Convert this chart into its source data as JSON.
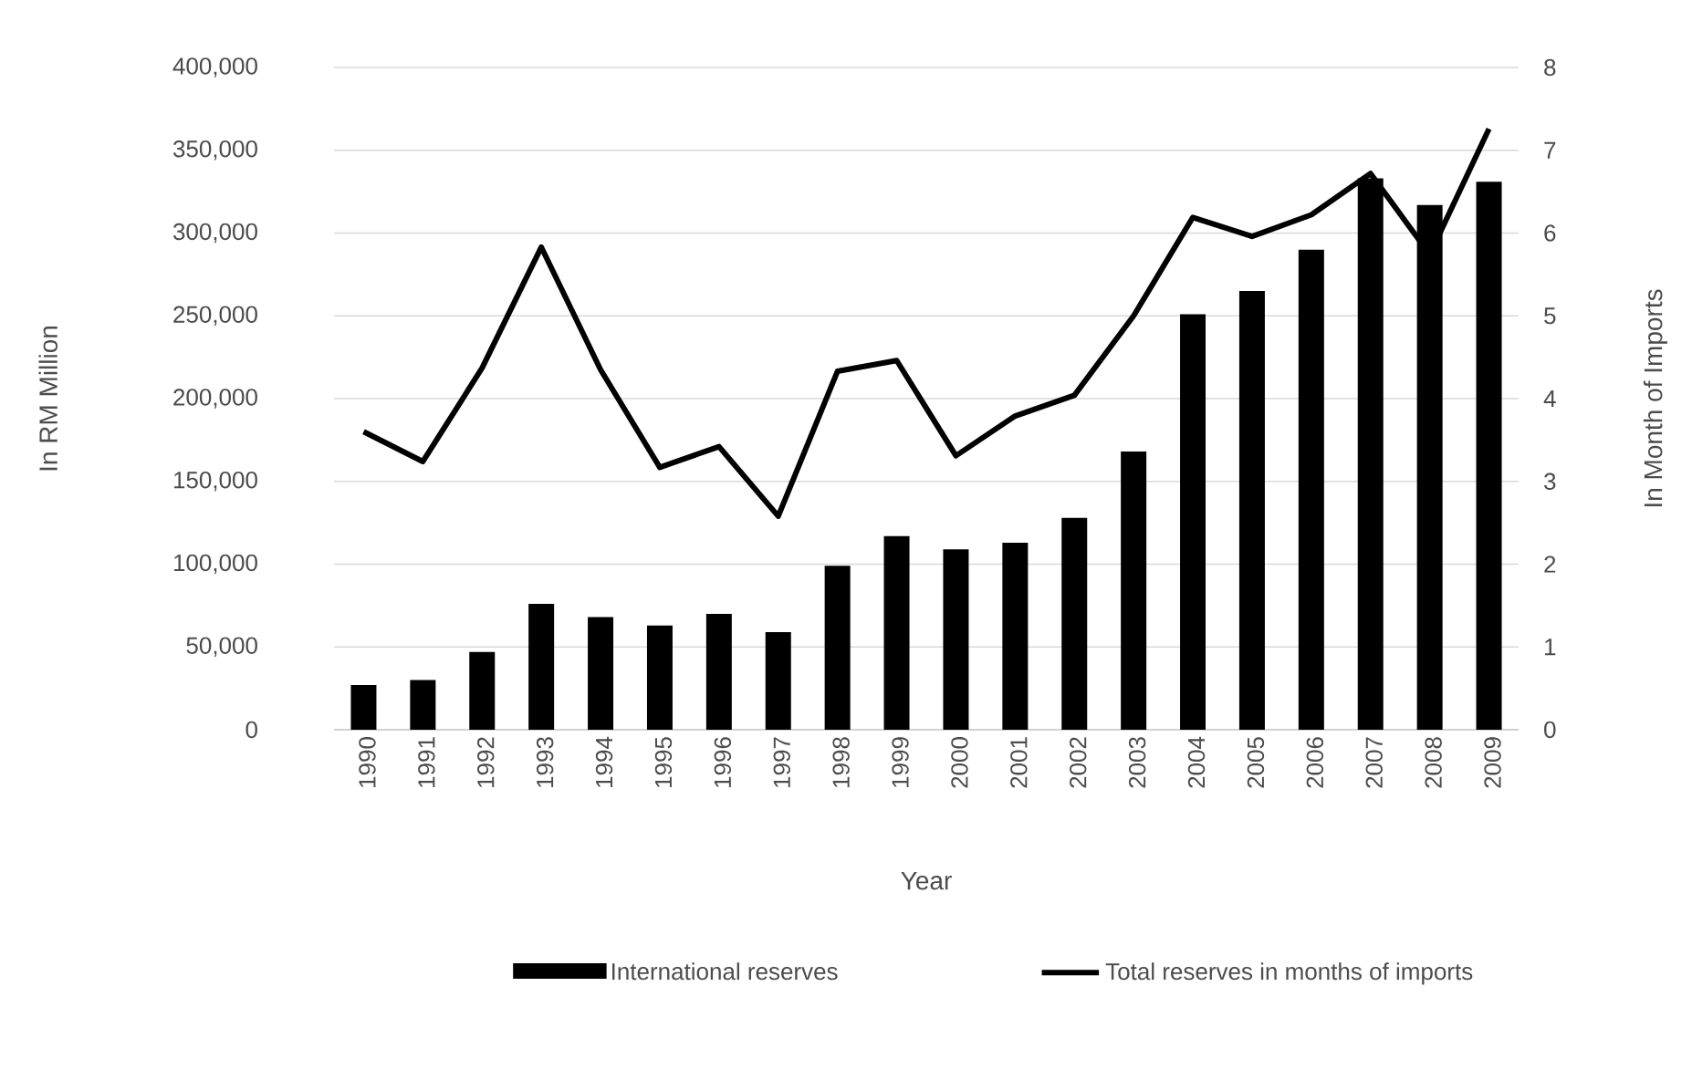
{
  "chart_data": {
    "type": "bar",
    "xlabel": "Year",
    "ylabel": "In RM Million",
    "y2label": "In Month of Imports",
    "categories": [
      "1990",
      "1991",
      "1992",
      "1993",
      "1994",
      "1995",
      "1996",
      "1997",
      "1998",
      "1999",
      "2000",
      "2001",
      "2002",
      "2003",
      "2004",
      "2005",
      "2006",
      "2007",
      "2008",
      "2009"
    ],
    "series": [
      {
        "name": "International reserves",
        "color": "#000000",
        "values": [
          27000,
          30000,
          47000,
          76000,
          68000,
          63000,
          70000,
          59000,
          99000,
          117000,
          109000,
          113000,
          128000,
          168000,
          251000,
          265000,
          290000,
          333000,
          317000,
          331000
        ]
      },
      {
        "name": "Total reserves in months of imports",
        "type": "line",
        "axis": "y2",
        "color": "#000000",
        "values": [
          3.6,
          3.24,
          4.37,
          5.83,
          4.35,
          3.17,
          3.42,
          2.58,
          4.33,
          4.46,
          3.31,
          3.79,
          4.04,
          5.0,
          6.19,
          5.96,
          6.22,
          6.72,
          5.74,
          7.26
        ]
      }
    ],
    "ylim": [
      0,
      400000
    ],
    "yticks": [
      {
        "value": 0,
        "label": "0"
      },
      {
        "value": 50000,
        "label": "50,000"
      },
      {
        "value": 100000,
        "label": "100,000"
      },
      {
        "value": 150000,
        "label": "150,000"
      },
      {
        "value": 200000,
        "label": "200,000"
      },
      {
        "value": 250000,
        "label": "250,000"
      },
      {
        "value": 300000,
        "label": "300,000"
      },
      {
        "value": 350000,
        "label": "350,000"
      },
      {
        "value": 400000,
        "label": "400,000"
      }
    ],
    "y2lim": [
      0,
      8
    ],
    "y2ticks": [
      0,
      1,
      2,
      3,
      4,
      5,
      6,
      7,
      8
    ],
    "grid": "y",
    "legend": "bottom"
  }
}
